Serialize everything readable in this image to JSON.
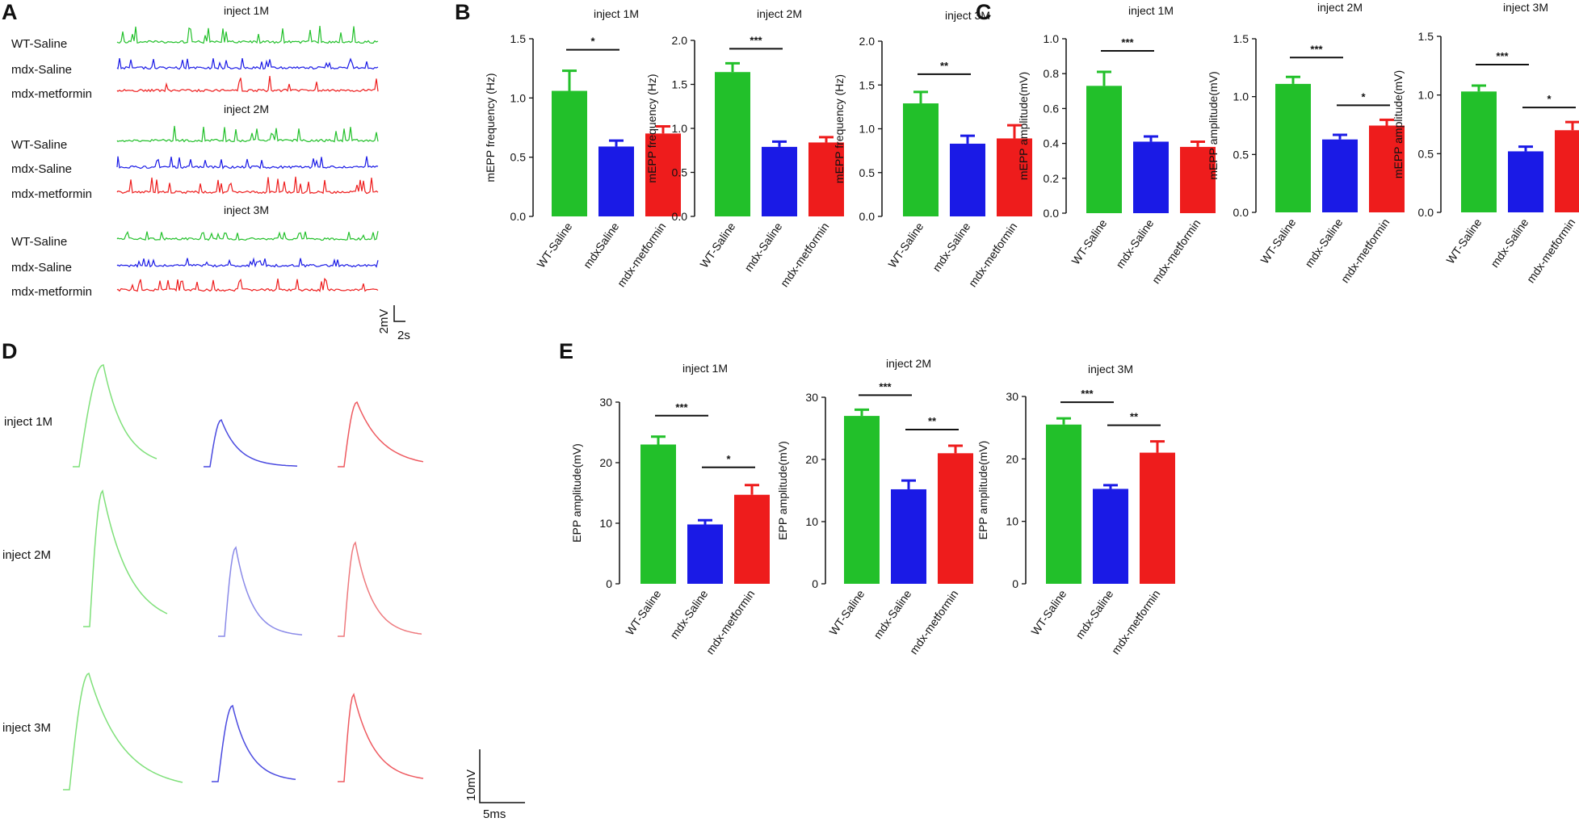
{
  "panels": {
    "A": "A",
    "B": "B",
    "C": "C",
    "D": "D",
    "E": "E"
  },
  "colors": {
    "WT-Saline": "#22c02a",
    "mdx-Saline": "#1a1ae6",
    "mdx-metformin": "#ee1c1c"
  },
  "panel_a": {
    "groups": [
      {
        "title": "inject 1M",
        "rows": [
          "WT-Saline",
          "mdx-Saline",
          "mdx-metformin"
        ]
      },
      {
        "title": "inject 2M",
        "rows": [
          "WT-Saline",
          "mdx-Saline",
          "mdx-metformin"
        ]
      },
      {
        "title": "inject 3M",
        "rows": [
          "WT-Saline",
          "mdx-Saline",
          "mdx-metformin"
        ]
      }
    ],
    "scale": {
      "voltage": "2mV",
      "time": "2s"
    }
  },
  "panel_d": {
    "rows": [
      "inject 1M",
      "inject 2M",
      "inject 3M"
    ],
    "scale": {
      "voltage": "10mV",
      "time": "5ms"
    }
  },
  "chart_data": [
    {
      "id": "B1",
      "type": "bar",
      "title": "inject 1M",
      "ylabel": "mEPP frequency (Hz)",
      "ylim": [
        0,
        1.5
      ],
      "yticks": [
        "0.0",
        "0.5",
        "1.0",
        "1.5"
      ],
      "categories": [
        "WT-Saline",
        "mdxSaline",
        "mdx-metformin"
      ],
      "values": [
        1.06,
        0.59,
        0.7
      ],
      "errors": [
        0.17,
        0.05,
        0.06
      ],
      "significance": [
        {
          "pair": [
            0,
            1
          ],
          "label": "*"
        }
      ]
    },
    {
      "id": "B2",
      "type": "bar",
      "title": "inject 2M",
      "ylabel": "mEPP frequency (Hz)",
      "ylim": [
        0,
        2.0
      ],
      "yticks": [
        "0.0",
        "0.5",
        "1.0",
        "1.5",
        "2.0"
      ],
      "categories": [
        "WT-Saline",
        "mdx-Saline",
        "mdx-metformin"
      ],
      "values": [
        1.64,
        0.79,
        0.84
      ],
      "errors": [
        0.1,
        0.06,
        0.06
      ],
      "significance": [
        {
          "pair": [
            0,
            1
          ],
          "label": "***"
        }
      ]
    },
    {
      "id": "B3",
      "type": "bar",
      "title": "inject 3M",
      "ylabel": "mEPP frequency (Hz)",
      "ylim": [
        0,
        2.0
      ],
      "yticks": [
        "0.0",
        "0.5",
        "1.0",
        "1.5",
        "2.0"
      ],
      "categories": [
        "WT-Saline",
        "mdx-Saline",
        "mdx-metformin"
      ],
      "values": [
        1.29,
        0.83,
        0.89
      ],
      "errors": [
        0.13,
        0.09,
        0.15
      ],
      "significance": [
        {
          "pair": [
            0,
            1
          ],
          "label": "**"
        }
      ]
    },
    {
      "id": "C1",
      "type": "bar",
      "title": "inject 1M",
      "ylabel": "mEPP amplitude(mV)",
      "ylim": [
        0,
        1.0
      ],
      "yticks": [
        "0.0",
        "0.2",
        "0.4",
        "0.6",
        "0.8",
        "1.0"
      ],
      "categories": [
        "WT-Saline",
        "mdx-Saline",
        "mdx-metformin"
      ],
      "values": [
        0.73,
        0.41,
        0.38
      ],
      "errors": [
        0.08,
        0.03,
        0.03
      ],
      "significance": [
        {
          "pair": [
            0,
            1
          ],
          "label": "***"
        }
      ]
    },
    {
      "id": "C2",
      "type": "bar",
      "title": "inject 2M",
      "ylabel": "mEPP amplitude(mV)",
      "ylim": [
        0,
        1.5
      ],
      "yticks": [
        "0.0",
        "0.5",
        "1.0",
        "1.5"
      ],
      "categories": [
        "WT-Saline",
        "mdx-Saline",
        "mdx-metformin"
      ],
      "values": [
        1.11,
        0.63,
        0.75
      ],
      "errors": [
        0.06,
        0.04,
        0.05
      ],
      "significance": [
        {
          "pair": [
            0,
            1
          ],
          "label": "***"
        },
        {
          "pair": [
            1,
            2
          ],
          "label": "*"
        }
      ]
    },
    {
      "id": "C3",
      "type": "bar",
      "title": "inject 3M",
      "ylabel": "mEPP amplitude(mV)",
      "ylim": [
        0,
        1.5
      ],
      "yticks": [
        "0.0",
        "0.5",
        "1.0",
        "1.5"
      ],
      "categories": [
        "WT-Saline",
        "mdx-Saline",
        "mdx-metformin"
      ],
      "values": [
        1.03,
        0.52,
        0.7
      ],
      "errors": [
        0.05,
        0.04,
        0.07
      ],
      "significance": [
        {
          "pair": [
            0,
            1
          ],
          "label": "***"
        },
        {
          "pair": [
            1,
            2
          ],
          "label": "*"
        }
      ]
    },
    {
      "id": "E1",
      "type": "bar",
      "title": "inject 1M",
      "ylabel": "EPP amplitude(mV)",
      "ylim": [
        0,
        30
      ],
      "yticks": [
        "0",
        "10",
        "20",
        "30"
      ],
      "categories": [
        "WT-Saline",
        "mdx-Saline",
        "mdx-metformin"
      ],
      "values": [
        23.0,
        9.8,
        14.7
      ],
      "errors": [
        1.3,
        0.7,
        1.6
      ],
      "significance": [
        {
          "pair": [
            0,
            1
          ],
          "label": "***"
        },
        {
          "pair": [
            1,
            2
          ],
          "label": "*"
        }
      ]
    },
    {
      "id": "E2",
      "type": "bar",
      "title": "inject 2M",
      "ylabel": "EPP amplitude(mV)",
      "ylim": [
        0,
        30
      ],
      "yticks": [
        "0",
        "10",
        "20",
        "30"
      ],
      "categories": [
        "WT-Saline",
        "mdx-Saline",
        "mdx-metformin"
      ],
      "values": [
        27.0,
        15.2,
        21.0
      ],
      "errors": [
        1.0,
        1.4,
        1.2
      ],
      "significance": [
        {
          "pair": [
            0,
            1
          ],
          "label": "***"
        },
        {
          "pair": [
            1,
            2
          ],
          "label": "**"
        }
      ]
    },
    {
      "id": "E3",
      "type": "bar",
      "title": "inject 3M",
      "ylabel": "EPP amplitude(mV)",
      "ylim": [
        0,
        30
      ],
      "yticks": [
        "0",
        "10",
        "20",
        "30"
      ],
      "categories": [
        "WT-Saline",
        "mdx-Saline",
        "mdx-metformin"
      ],
      "values": [
        25.5,
        15.2,
        21.0
      ],
      "errors": [
        1.0,
        0.6,
        1.8
      ],
      "significance": [
        {
          "pair": [
            0,
            1
          ],
          "label": "***"
        },
        {
          "pair": [
            1,
            2
          ],
          "label": "**"
        }
      ]
    }
  ]
}
